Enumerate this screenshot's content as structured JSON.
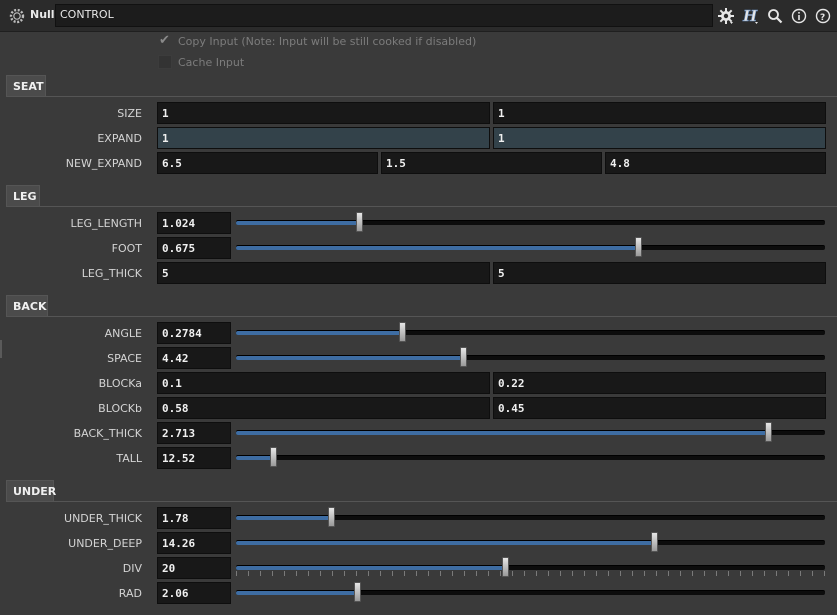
{
  "header": {
    "node_type": "Null",
    "node_name": "CONTROL",
    "icons": [
      "gear-icon",
      "houdini-help-h-icon",
      "magnifier-icon",
      "info-icon",
      "help-icon"
    ]
  },
  "options": {
    "copy_input": {
      "label": "Copy Input (Note: Input will be still cooked if disabled)",
      "checked": true
    },
    "cache_input": {
      "label": "Cache Input",
      "checked": false
    }
  },
  "sections": {
    "seat": {
      "label": "SEAT",
      "size": {
        "label": "SIZE",
        "v1": "1",
        "v2": "1"
      },
      "expand": {
        "label": "EXPAND",
        "v1": "1",
        "v2": "1"
      },
      "new_expand": {
        "label": "NEW_EXPAND",
        "v1": "6.5",
        "v2": "1.5",
        "v3": "4.8"
      }
    },
    "leg": {
      "label": "LEG",
      "leg_length": {
        "label": "LEG_LENGTH",
        "value": "1.024",
        "slider": 0.209
      },
      "foot": {
        "label": "FOOT",
        "value": "0.675",
        "slider": 0.682
      },
      "leg_thick": {
        "label": "LEG_THICK",
        "v1": "5",
        "v2": "5"
      }
    },
    "back": {
      "label": "BACK",
      "angle": {
        "label": "ANGLE",
        "value": "0.2784",
        "slider": 0.282
      },
      "space": {
        "label": "SPACE",
        "value": "4.42",
        "slider": 0.385
      },
      "blocka": {
        "label": "BLOCKa",
        "v1": "0.1",
        "v2": "0.22"
      },
      "blockb": {
        "label": "BLOCKb",
        "v1": "0.58",
        "v2": "0.45"
      },
      "back_thick": {
        "label": "BACK_THICK",
        "value": "2.713",
        "slider": 0.903
      },
      "tall": {
        "label": "TALL",
        "value": "12.52",
        "slider": 0.063
      }
    },
    "under": {
      "label": "UNDER",
      "under_thick": {
        "label": "UNDER_THICK",
        "value": "1.78",
        "slider": 0.161
      },
      "under_deep": {
        "label": "UNDER_DEEP",
        "value": "14.26",
        "slider": 0.709
      },
      "div": {
        "label": "DIV",
        "value": "20",
        "slider": 0.457
      },
      "rad": {
        "label": "RAD",
        "value": "2.06",
        "slider": 0.206
      }
    }
  },
  "colors": {
    "accent": "#3e6da3",
    "panel": "#3a3a3a",
    "field": "#181818",
    "field_highlight": "#33424a"
  }
}
